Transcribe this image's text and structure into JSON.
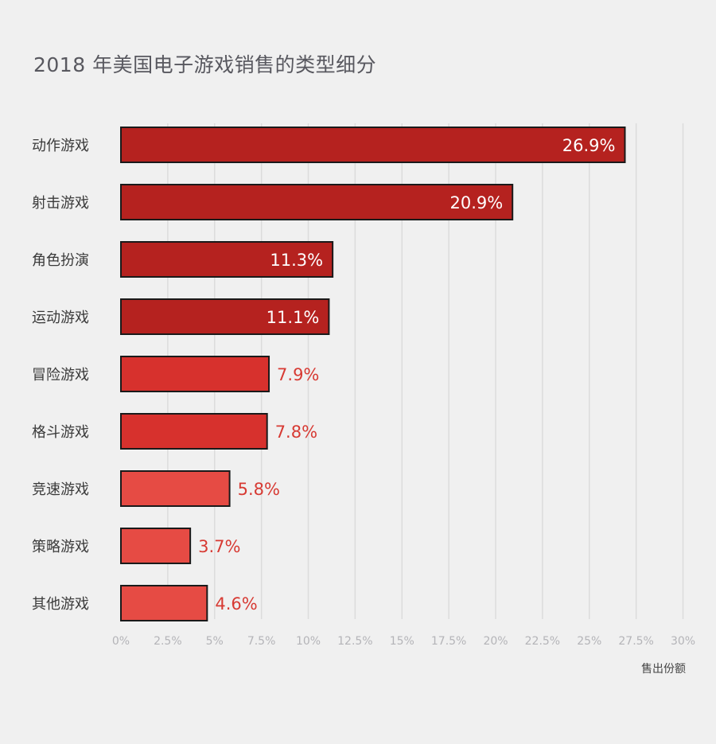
{
  "chart_data": {
    "type": "bar",
    "orientation": "horizontal",
    "title": "2018 年美国电子游戏销售的类型细分",
    "xlabel": "售出份额",
    "ylabel": "",
    "categories": [
      "动作游戏",
      "射击游戏",
      "角色扮演",
      "运动游戏",
      "冒险游戏",
      "格斗游戏",
      "竞速游戏",
      "策略游戏",
      "其他游戏"
    ],
    "values": [
      26.9,
      20.9,
      11.3,
      11.1,
      7.9,
      7.8,
      5.8,
      3.7,
      4.6
    ],
    "value_labels": [
      "26.9%",
      "20.9%",
      "11.3%",
      "11.1%",
      "7.9%",
      "7.8%",
      "5.8%",
      "3.7%",
      "4.6%"
    ],
    "xlim": [
      0,
      30
    ],
    "xticks": [
      0,
      2.5,
      5,
      7.5,
      10,
      12.5,
      15,
      17.5,
      20,
      22.5,
      25,
      27.5,
      30
    ],
    "xtick_labels": [
      "0%",
      "2.5%",
      "5%",
      "7.5%",
      "10%",
      "12.5%",
      "15%",
      "17.5%",
      "20%",
      "22.5%",
      "25%",
      "27.5%",
      "30%"
    ],
    "grid": true,
    "legend": "none",
    "colors": {
      "bar_dark": "#b5221f",
      "bar_mid": "#d7312d",
      "bar_light": "#e64b44",
      "bar_outline": "#1a1a1a",
      "label_inside": "#ffffff",
      "label_outside": "#d73a33",
      "grid": "#dcdcdc",
      "background": "#f0f0f0"
    }
  }
}
